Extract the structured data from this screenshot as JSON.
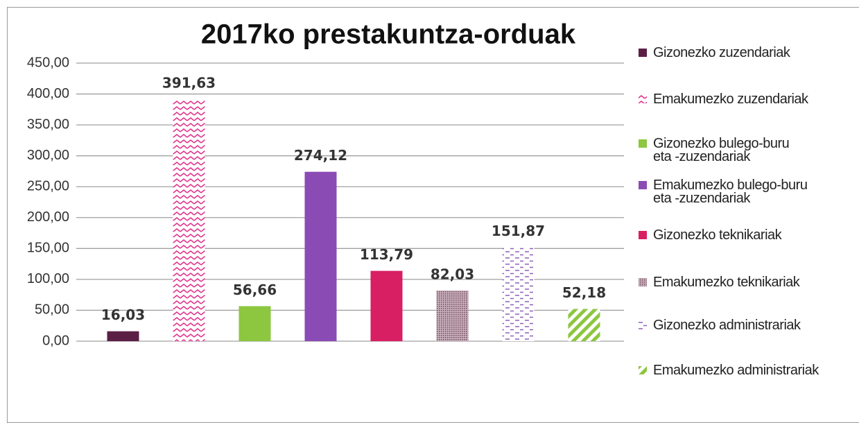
{
  "chart_data": {
    "type": "bar",
    "title": "2017ko prestakuntza-orduak",
    "categories": [
      "Gizonezko zuzendariak",
      "Emakumezko zuzendariak",
      "Gizonezko bulego-buru\neta -zuzendariak",
      "Emakumezko bulego-buru\neta -zuzendariak",
      "Gizonezko teknikariak",
      "Emakumezko teknikariak",
      "Gizonezko administrariak",
      "Emakumezko administrariak"
    ],
    "values": [
      16.03,
      391.63,
      56.66,
      274.12,
      113.79,
      82.03,
      151.87,
      52.18
    ],
    "value_labels": [
      "16,03",
      "391,63",
      "56,66",
      "274,12",
      "113,79",
      "82,03",
      "151,87",
      "52,18"
    ],
    "colors": [
      "#5b1f46",
      "#e0338c",
      "#8dc63f",
      "#8b4bb5",
      "#d81f64",
      "#a77d90",
      "#8e5fb8",
      "#8dc63f"
    ],
    "patterns": [
      "solid",
      "zigzag",
      "solid",
      "solid",
      "solid",
      "dots",
      "dashes",
      "stripes"
    ],
    "ylim": [
      0,
      450
    ],
    "yticks": [
      {
        "value": 0,
        "label": "0,00"
      },
      {
        "value": 50,
        "label": "50,00"
      },
      {
        "value": 100,
        "label": "100,00"
      },
      {
        "value": 150,
        "label": "150,00"
      },
      {
        "value": 200,
        "label": "200,00"
      },
      {
        "value": 250,
        "label": "250,00"
      },
      {
        "value": 300,
        "label": "300,00"
      },
      {
        "value": 350,
        "label": "350,00"
      },
      {
        "value": 400,
        "label": "400,00"
      },
      {
        "value": 450,
        "label": "450,00"
      }
    ],
    "grid": true,
    "legend": "right"
  }
}
